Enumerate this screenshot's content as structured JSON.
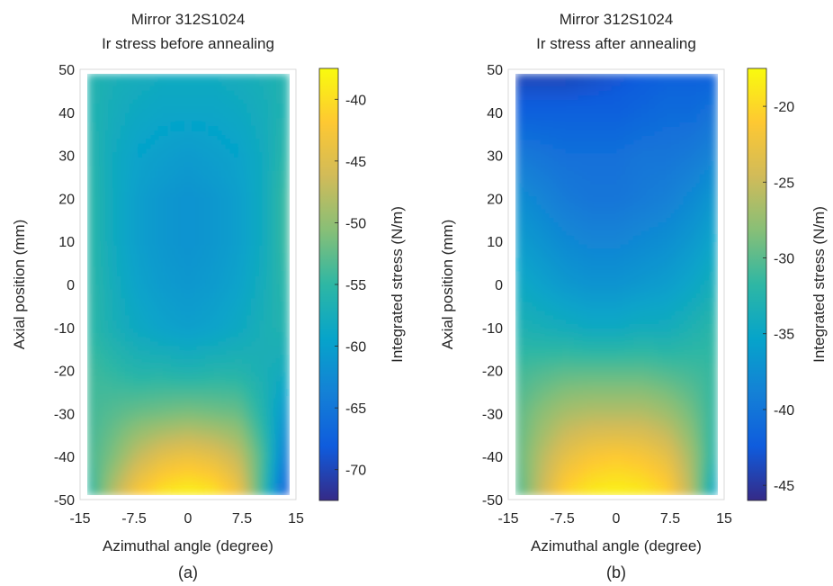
{
  "chart_data": [
    {
      "type": "heatmap",
      "panel_label": "(a)",
      "title_line1": "Mirror 312S1024",
      "title_line2": "Ir stress before annealing",
      "xlabel": "Azimuthal angle (degree)",
      "ylabel": "Axial position (mm)",
      "colorbar_label": "Integrated stress (N/m)",
      "xlim": [
        -15,
        15
      ],
      "ylim": [
        -50,
        50
      ],
      "data_x_extent": [
        -14,
        14
      ],
      "data_y_extent": [
        -49,
        49
      ],
      "x_ticks": [
        "-15",
        "-7.5",
        "0",
        "7.5",
        "15"
      ],
      "x_tick_values": [
        -15,
        -7.5,
        0,
        7.5,
        15
      ],
      "y_ticks": [
        "50",
        "40",
        "30",
        "20",
        "10",
        "0",
        "-10",
        "-20",
        "-30",
        "-40",
        "-50"
      ],
      "y_tick_values": [
        50,
        40,
        30,
        20,
        10,
        0,
        -10,
        -20,
        -30,
        -40,
        -50
      ],
      "clim": [
        -72.5,
        -37.5
      ],
      "colorbar_ticks": [
        "-40",
        "-45",
        "-50",
        "-55",
        "-60",
        "-65",
        "-70"
      ],
      "colorbar_tick_values": [
        -40,
        -45,
        -50,
        -55,
        -60,
        -65,
        -70
      ],
      "grid_x": [
        -14,
        -10.5,
        -7,
        -3.5,
        0,
        3.5,
        7,
        10.5,
        14
      ],
      "grid_y": [
        49,
        40,
        30,
        20,
        10,
        0,
        -10,
        -20,
        -30,
        -40,
        -49
      ],
      "z": [
        [
          -56,
          -57,
          -57.5,
          -58,
          -58,
          -58,
          -57.5,
          -57,
          -56
        ],
        [
          -56,
          -57.5,
          -58.5,
          -59,
          -59,
          -59,
          -58.5,
          -57.5,
          -56
        ],
        [
          -55.5,
          -58,
          -59.5,
          -60,
          -60.5,
          -60,
          -59.5,
          -58,
          -55
        ],
        [
          -55,
          -58,
          -60,
          -61,
          -61.5,
          -61,
          -60,
          -58,
          -54
        ],
        [
          -55,
          -58,
          -60,
          -61,
          -61.5,
          -61,
          -60,
          -58,
          -54
        ],
        [
          -55,
          -57.5,
          -59.5,
          -60.5,
          -61,
          -60.5,
          -59.5,
          -57.5,
          -55
        ],
        [
          -55,
          -57,
          -58.5,
          -59.5,
          -60,
          -59.5,
          -58.5,
          -57,
          -56
        ],
        [
          -54,
          -55,
          -56,
          -56,
          -56.5,
          -56,
          -56,
          -57,
          -58
        ],
        [
          -54,
          -53,
          -52,
          -51.5,
          -51,
          -51.5,
          -52,
          -56,
          -62
        ],
        [
          -54,
          -51,
          -47,
          -44.5,
          -43.5,
          -44.5,
          -47,
          -54,
          -66
        ],
        [
          -56,
          -48,
          -42,
          -39,
          -38,
          -39,
          -43,
          -55,
          -70
        ]
      ]
    },
    {
      "type": "heatmap",
      "panel_label": "(b)",
      "title_line1": "Mirror 312S1024",
      "title_line2": "Ir stress after annealing",
      "xlabel": "Azimuthal angle (degree)",
      "ylabel": "Axial position (mm)",
      "colorbar_label": "Integrated stress (N/m)",
      "xlim": [
        -15,
        15
      ],
      "ylim": [
        -50,
        50
      ],
      "data_x_extent": [
        -14,
        14
      ],
      "data_y_extent": [
        -49,
        49
      ],
      "x_ticks": [
        "-15",
        "-7.5",
        "0",
        "7.5",
        "15"
      ],
      "x_tick_values": [
        -15,
        -7.5,
        0,
        7.5,
        15
      ],
      "y_ticks": [
        "50",
        "40",
        "30",
        "20",
        "10",
        "0",
        "-10",
        "-20",
        "-30",
        "-40",
        "-50"
      ],
      "y_tick_values": [
        50,
        40,
        30,
        20,
        10,
        0,
        -10,
        -20,
        -30,
        -40,
        -50
      ],
      "clim": [
        -46,
        -17.5
      ],
      "colorbar_ticks": [
        "-20",
        "-25",
        "-30",
        "-35",
        "-40",
        "-45"
      ],
      "colorbar_tick_values": [
        -20,
        -25,
        -30,
        -35,
        -40,
        -45
      ],
      "grid_x": [
        -14,
        -10.5,
        -7,
        -3.5,
        0,
        3.5,
        7,
        10.5,
        14
      ],
      "grid_y": [
        49,
        40,
        30,
        20,
        10,
        0,
        -10,
        -20,
        -30,
        -40,
        -49
      ],
      "z": [
        [
          -44,
          -44,
          -44,
          -43.5,
          -43,
          -42.5,
          -42,
          -42,
          -42
        ],
        [
          -42,
          -42,
          -42,
          -42,
          -42,
          -41.5,
          -41,
          -41,
          -40
        ],
        [
          -39.5,
          -40,
          -40.5,
          -40.5,
          -40.5,
          -40,
          -40,
          -39.5,
          -38.5
        ],
        [
          -37.5,
          -38.5,
          -39.5,
          -40,
          -40,
          -39.5,
          -39,
          -38,
          -36.5
        ],
        [
          -36,
          -37,
          -38,
          -38.5,
          -38.5,
          -38,
          -37.5,
          -36.5,
          -35
        ],
        [
          -34.5,
          -35.5,
          -36.5,
          -37,
          -37,
          -36.5,
          -36,
          -35,
          -33.5
        ],
        [
          -33,
          -33.5,
          -34,
          -34.5,
          -34.5,
          -34,
          -34,
          -33,
          -32
        ],
        [
          -31,
          -30.5,
          -30,
          -30,
          -30,
          -30,
          -30.5,
          -31,
          -31.5
        ],
        [
          -30,
          -28,
          -26.5,
          -26,
          -26,
          -26,
          -27,
          -29,
          -32
        ],
        [
          -30,
          -26,
          -23,
          -21.5,
          -21,
          -21.5,
          -23,
          -27,
          -33
        ],
        [
          -31,
          -25,
          -20,
          -18.5,
          -18,
          -18.5,
          -20,
          -26,
          -36
        ]
      ]
    }
  ]
}
